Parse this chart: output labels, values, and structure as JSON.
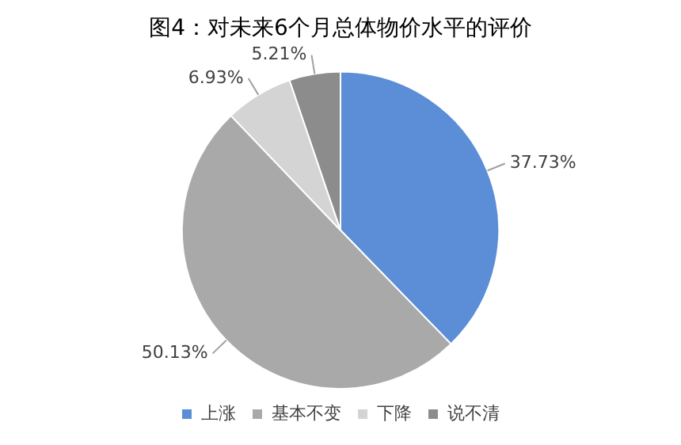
{
  "chart_data": {
    "type": "pie",
    "title": "图4：对未来6个月总体物价水平的评价",
    "categories": [
      "上涨",
      "基本不变",
      "下降",
      "说不清"
    ],
    "values": [
      37.73,
      50.13,
      6.93,
      5.21
    ],
    "colors": [
      "#5b8ed6",
      "#a9a9a9",
      "#d4d4d4",
      "#8c8c8c"
    ],
    "value_labels": [
      "37.73%",
      "50.13%",
      "6.93%",
      "5.21%"
    ],
    "legend": "bottom"
  }
}
